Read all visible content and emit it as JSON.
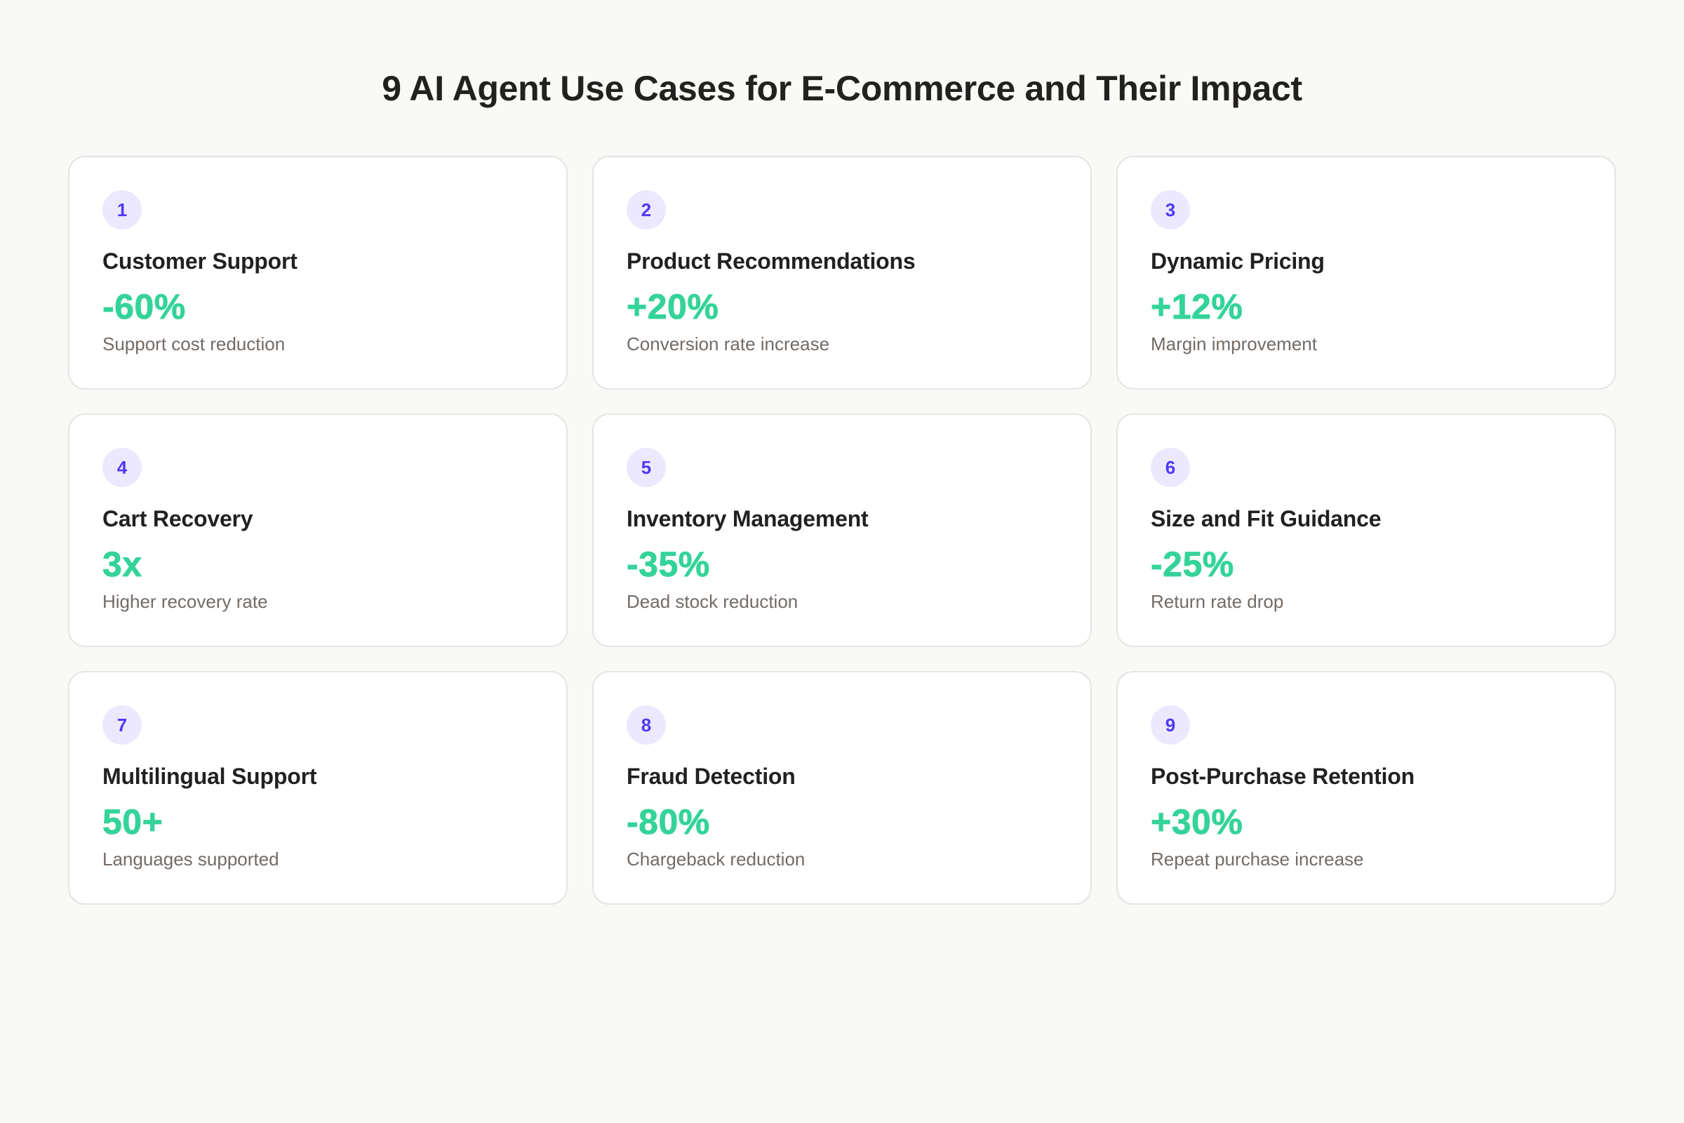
{
  "header": {
    "title": "9 AI Agent Use Cases for E-Commerce and Their Impact"
  },
  "colors": {
    "background": "#f9f9f7",
    "card_background": "#ffffff",
    "card_border": "#e6e5e2",
    "badge_background": "#ece9fe",
    "badge_text": "#4f39f6",
    "metric": "#34d399",
    "title_text": "#232120",
    "description_text": "#736b66"
  },
  "cards": [
    {
      "number": "1",
      "title": "Customer Support",
      "metric": "-60%",
      "description": "Support cost reduction"
    },
    {
      "number": "2",
      "title": "Product Recommendations",
      "metric": "+20%",
      "description": "Conversion rate increase"
    },
    {
      "number": "3",
      "title": "Dynamic Pricing",
      "metric": "+12%",
      "description": "Margin improvement"
    },
    {
      "number": "4",
      "title": "Cart Recovery",
      "metric": "3x",
      "description": "Higher recovery rate"
    },
    {
      "number": "5",
      "title": "Inventory Management",
      "metric": "-35%",
      "description": "Dead stock reduction"
    },
    {
      "number": "6",
      "title": "Size and Fit Guidance",
      "metric": "-25%",
      "description": "Return rate drop"
    },
    {
      "number": "7",
      "title": "Multilingual Support",
      "metric": "50+",
      "description": "Languages supported"
    },
    {
      "number": "8",
      "title": "Fraud Detection",
      "metric": "-80%",
      "description": "Chargeback reduction"
    },
    {
      "number": "9",
      "title": "Post-Purchase Retention",
      "metric": "+30%",
      "description": "Repeat purchase increase"
    }
  ]
}
